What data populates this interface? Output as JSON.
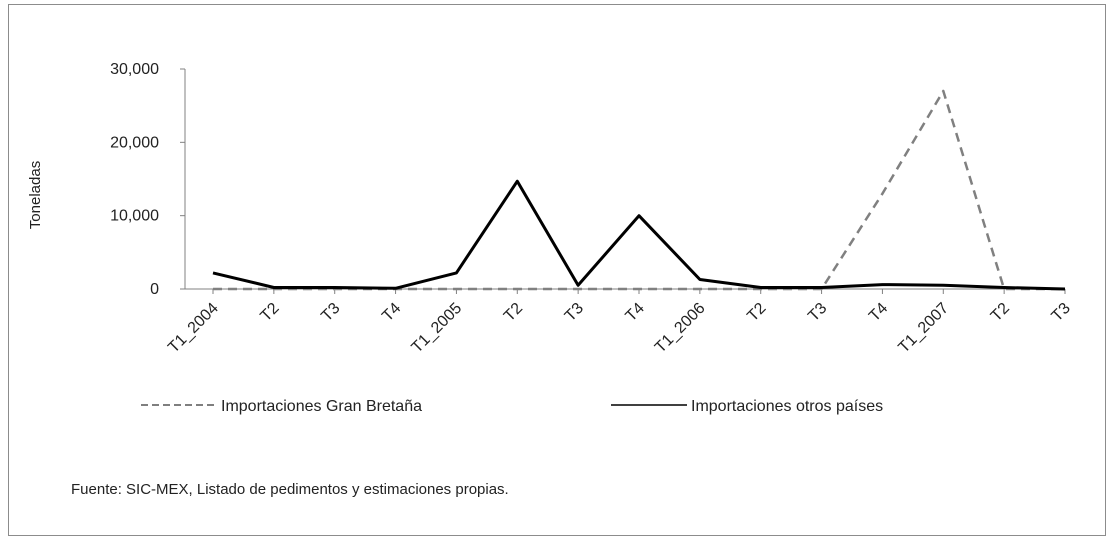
{
  "chart_data": {
    "type": "line",
    "title": "",
    "xlabel": "",
    "ylabel": "Toneladas",
    "ylim": [
      0,
      30000
    ],
    "yticks": [
      0,
      10000,
      20000,
      30000
    ],
    "ytick_labels": [
      "0",
      "10,000",
      "20,000",
      "30,000"
    ],
    "categories": [
      "T1_2004",
      "T2",
      "T3",
      "T4",
      "T1_2005",
      "T2",
      "T3",
      "T4",
      "T1_2006",
      "T2",
      "T3",
      "T4",
      "T1_2007",
      "T2",
      "T3"
    ],
    "series": [
      {
        "name": "Importaciones Gran Bretaña",
        "style": "dashed",
        "color": "#808080",
        "values": [
          0,
          0,
          0,
          0,
          0,
          0,
          0,
          0,
          0,
          0,
          0,
          13000,
          27000,
          0,
          0
        ]
      },
      {
        "name": "Importaciones otros países",
        "style": "solid",
        "color": "#000000",
        "values": [
          2200,
          200,
          200,
          100,
          2200,
          14700,
          500,
          10000,
          1300,
          200,
          200,
          600,
          500,
          200,
          0
        ]
      }
    ],
    "legend_position": "bottom",
    "grid": false
  },
  "source_note": "Fuente: SIC-MEX, Listado de pedimentos y estimaciones propias."
}
